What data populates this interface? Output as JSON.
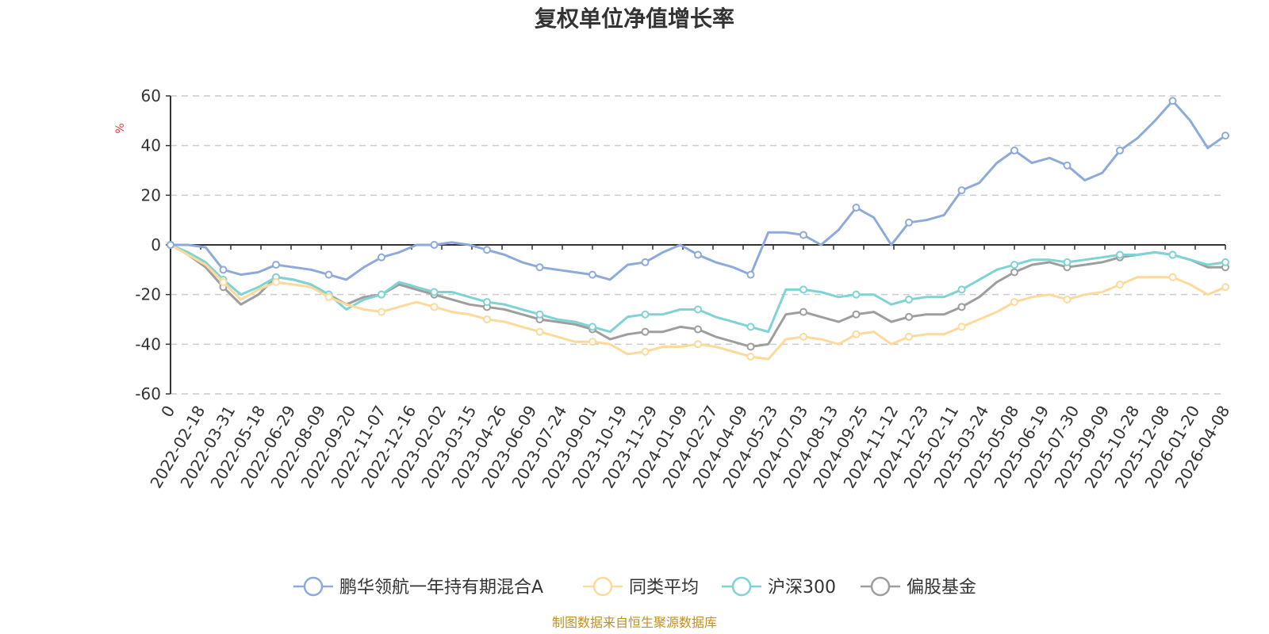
{
  "chart_data": {
    "type": "line",
    "title": "复权单位净值增长率",
    "ylabel": "%",
    "ylim": [
      -60,
      60
    ],
    "yticks": [
      -60,
      -40,
      -20,
      0,
      20,
      40,
      60
    ],
    "x_tick_labels": [
      "0",
      "2022-02-18",
      "2022-03-31",
      "2022-05-18",
      "2022-06-29",
      "2022-08-09",
      "2022-09-20",
      "2022-11-07",
      "2022-12-16",
      "2023-02-02",
      "2023-03-15",
      "2023-04-26",
      "2023-06-09",
      "2023-07-24",
      "2023-09-01",
      "2023-10-19",
      "2023-11-29",
      "2024-01-09",
      "2024-02-27",
      "2024-04-09",
      "2024-05-23",
      "2024-07-03",
      "2024-08-13",
      "2024-09-25",
      "2024-11-12",
      "2024-12-23",
      "2025-02-11",
      "2025-03-24",
      "2025-05-08",
      "2025-06-19",
      "2025-07-30",
      "2025-09-09",
      "2025-10-28",
      "2025-12-08",
      "2026-01-20",
      "2026-04-08"
    ],
    "grid": true,
    "legend_position": "bottom",
    "series": [
      {
        "name": "鹏华领航一年持有期混合A",
        "color": "#8eaadb",
        "values": [
          0,
          0,
          -1,
          -10,
          -12,
          -11,
          -8,
          -9,
          -10,
          -12,
          -14,
          -9,
          -5,
          -3,
          0,
          0,
          1,
          0,
          -2,
          -4,
          -7,
          -9,
          -10,
          -11,
          -12,
          -14,
          -8,
          -7,
          -3,
          0,
          -4,
          -7,
          -9,
          -12,
          5,
          5,
          4,
          0,
          6,
          15,
          11,
          0,
          9,
          10,
          12,
          22,
          25,
          33,
          38,
          33,
          35,
          32,
          26,
          29,
          38,
          43,
          50,
          58,
          50,
          39,
          44
        ]
      },
      {
        "name": "同类平均",
        "color": "#fdd99b",
        "values": [
          0,
          -4,
          -8,
          -15,
          -22,
          -18,
          -15,
          -16,
          -17,
          -21,
          -24,
          -26,
          -27,
          -25,
          -23,
          -25,
          -27,
          -28,
          -30,
          -31,
          -33,
          -35,
          -37,
          -39,
          -39,
          -40,
          -44,
          -43,
          -41,
          -41,
          -40,
          -41,
          -43,
          -45,
          -46,
          -38,
          -37,
          -38,
          -40,
          -36,
          -35,
          -40,
          -37,
          -36,
          -36,
          -33,
          -30,
          -27,
          -23,
          -21,
          -20,
          -22,
          -20,
          -19,
          -16,
          -13,
          -13,
          -13,
          -16,
          -20,
          -17
        ]
      },
      {
        "name": "沪深300",
        "color": "#7fd3d3",
        "values": [
          0,
          -3,
          -7,
          -14,
          -20,
          -17,
          -13,
          -14,
          -16,
          -20,
          -26,
          -22,
          -20,
          -15,
          -17,
          -19,
          -19,
          -21,
          -23,
          -24,
          -26,
          -28,
          -30,
          -31,
          -33,
          -35,
          -29,
          -28,
          -28,
          -26,
          -26,
          -29,
          -31,
          -33,
          -35,
          -18,
          -18,
          -19,
          -21,
          -20,
          -20,
          -24,
          -22,
          -21,
          -21,
          -18,
          -14,
          -10,
          -8,
          -6,
          -6,
          -7,
          -6,
          -5,
          -4,
          -4,
          -3,
          -4,
          -6,
          -8,
          -7
        ]
      },
      {
        "name": "偏股基金",
        "color": "#9e9e9e",
        "values": [
          0,
          -4,
          -9,
          -17,
          -24,
          -20,
          -13,
          -14,
          -16,
          -20,
          -24,
          -21,
          -20,
          -16,
          -18,
          -20,
          -22,
          -24,
          -25,
          -26,
          -28,
          -30,
          -31,
          -32,
          -34,
          -38,
          -36,
          -35,
          -35,
          -33,
          -34,
          -37,
          -39,
          -41,
          -40,
          -28,
          -27,
          -29,
          -31,
          -28,
          -27,
          -31,
          -29,
          -28,
          -28,
          -25,
          -21,
          -15,
          -11,
          -8,
          -7,
          -9,
          -8,
          -7,
          -5,
          -4,
          -3,
          -4,
          -6,
          -9,
          -9
        ]
      }
    ]
  },
  "source_note": "制图数据来自恒生聚源数据库"
}
